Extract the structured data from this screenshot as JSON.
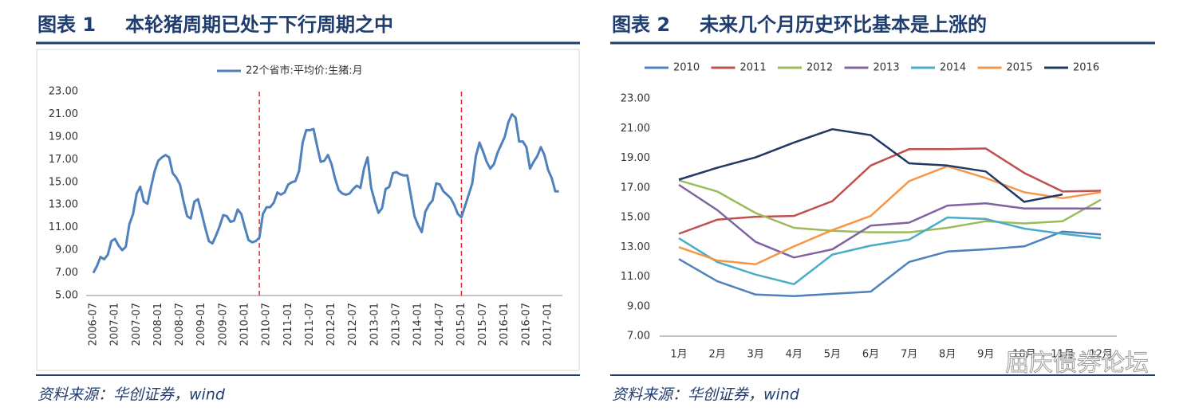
{
  "chart_data": [
    {
      "type": "line",
      "figure_label": "图表 1",
      "title": "本轮猪周期已处于下行周期之中",
      "source": "资料来源：华创证券，wind",
      "categories": [
        "2006-07",
        null,
        null,
        null,
        null,
        null,
        "2007-01",
        null,
        null,
        null,
        null,
        null,
        "2007-07",
        null,
        null,
        null,
        null,
        null,
        "2008-01",
        null,
        null,
        null,
        null,
        null,
        "2008-07",
        null,
        null,
        null,
        null,
        null,
        "2009-01",
        null,
        null,
        null,
        null,
        null,
        "2009-07",
        null,
        null,
        null,
        null,
        null,
        "2010-01",
        null,
        null,
        null,
        null,
        null,
        "2010-07",
        null,
        null,
        null,
        null,
        null,
        "2011-01",
        null,
        null,
        null,
        null,
        null,
        "2011-07",
        null,
        null,
        null,
        null,
        null,
        "2012-01",
        null,
        null,
        null,
        null,
        null,
        "2012-07",
        null,
        null,
        null,
        null,
        null,
        "2013-01",
        null,
        null,
        null,
        null,
        null,
        "2013-07",
        null,
        null,
        null,
        null,
        null,
        "2014-01",
        null,
        null,
        null,
        null,
        null,
        "2014-07",
        null,
        null,
        null,
        null,
        null,
        "2015-01",
        null,
        null,
        null,
        null,
        null,
        "2015-07",
        null,
        null,
        null,
        null,
        null,
        "2016-01",
        null,
        null,
        null,
        null,
        null,
        "2016-07",
        null,
        null,
        null,
        null,
        null,
        "2017-01",
        null,
        null,
        null
      ],
      "series": [
        {
          "name": "22个省市:平均价:生猪:月",
          "color": "#4f81bd",
          "values": [
            7.0,
            7.6,
            8.4,
            8.2,
            8.6,
            9.8,
            10.0,
            9.4,
            9.0,
            9.3,
            11.3,
            12.2,
            14.0,
            14.6,
            13.3,
            13.1,
            14.6,
            16.0,
            16.9,
            17.2,
            17.4,
            17.2,
            15.8,
            15.4,
            14.8,
            13.3,
            12.0,
            11.8,
            13.3,
            13.5,
            12.3,
            11.0,
            9.8,
            9.6,
            10.3,
            11.1,
            12.1,
            12.0,
            11.5,
            11.6,
            12.6,
            12.2,
            11.0,
            9.9,
            9.7,
            9.8,
            10.1,
            12.2,
            12.8,
            12.8,
            13.2,
            14.1,
            13.9,
            14.1,
            14.8,
            15.0,
            15.1,
            16.0,
            18.5,
            19.6,
            19.6,
            19.7,
            18.2,
            16.8,
            16.9,
            17.4,
            16.6,
            15.3,
            14.3,
            14.0,
            13.9,
            14.0,
            14.4,
            14.7,
            14.5,
            16.2,
            17.2,
            14.5,
            13.3,
            12.3,
            12.7,
            14.4,
            14.6,
            15.8,
            15.9,
            15.7,
            15.6,
            15.6,
            13.8,
            12.0,
            11.2,
            10.6,
            12.4,
            13.0,
            13.4,
            14.9,
            14.8,
            14.2,
            13.9,
            13.6,
            13.0,
            12.2,
            11.9,
            12.9,
            13.9,
            14.9,
            17.3,
            18.5,
            17.7,
            16.8,
            16.2,
            16.6,
            17.6,
            18.3,
            19.0,
            20.3,
            21.0,
            20.7,
            18.6,
            18.6,
            18.1,
            16.2,
            16.8,
            17.3,
            18.1,
            17.4,
            16.1,
            15.4,
            14.2,
            14.2
          ]
        }
      ],
      "vlines": [
        46,
        102
      ],
      "vline_color": "#e8262b",
      "ylim": [
        5,
        23
      ],
      "yticks": [
        {
          "value": 5,
          "label": "5.00"
        },
        {
          "value": 7,
          "label": "7.00"
        },
        {
          "value": 9,
          "label": "9.00"
        },
        {
          "value": 11,
          "label": "11.00"
        },
        {
          "value": 13,
          "label": "13.00"
        },
        {
          "value": 15,
          "label": "15.00"
        },
        {
          "value": 17,
          "label": "17.00"
        },
        {
          "value": 19,
          "label": "19.00"
        },
        {
          "value": 21,
          "label": "21.00"
        },
        {
          "value": 23,
          "label": "23.00"
        }
      ],
      "grid": false,
      "legend": "top"
    },
    {
      "type": "line",
      "figure_label": "图表 2",
      "title": "未来几个月历史环比基本是上涨的",
      "source": "资料来源：华创证券，wind",
      "categories": [
        "1月",
        "2月",
        "3月",
        "4月",
        "5月",
        "6月",
        "7月",
        "8月",
        "9月",
        "10月",
        "11月",
        "12月"
      ],
      "series": [
        {
          "name": "2010",
          "color": "#4f81bd",
          "values": [
            12.2,
            10.7,
            9.8,
            9.7,
            9.85,
            10.0,
            12.0,
            12.7,
            12.85,
            13.05,
            14.05,
            13.85
          ]
        },
        {
          "name": "2011",
          "color": "#c0504d",
          "values": [
            13.9,
            14.85,
            15.05,
            15.1,
            16.1,
            18.5,
            19.6,
            19.6,
            19.65,
            18.0,
            16.75,
            16.8
          ]
        },
        {
          "name": "2012",
          "color": "#9bbb59",
          "values": [
            17.5,
            16.75,
            15.3,
            14.3,
            14.1,
            14.0,
            14.0,
            14.3,
            14.75,
            14.6,
            14.75,
            16.2
          ]
        },
        {
          "name": "2013",
          "color": "#8064a2",
          "values": [
            17.2,
            15.5,
            13.35,
            12.3,
            12.85,
            14.45,
            14.65,
            15.8,
            15.95,
            15.6,
            15.6,
            15.6
          ]
        },
        {
          "name": "2014",
          "color": "#4bacc6",
          "values": [
            13.6,
            12.0,
            11.15,
            10.5,
            12.5,
            13.1,
            13.5,
            15.0,
            14.9,
            14.25,
            13.9,
            13.6
          ]
        },
        {
          "name": "2015",
          "color": "#f79646",
          "values": [
            13.0,
            12.1,
            11.85,
            13.05,
            14.15,
            15.1,
            17.45,
            18.45,
            17.65,
            16.7,
            16.3,
            16.7
          ]
        },
        {
          "name": "2016",
          "color": "#1f3864",
          "values": [
            17.55,
            18.35,
            19.05,
            20.05,
            20.95,
            20.55,
            18.65,
            18.5,
            18.1,
            16.05,
            16.55,
            null
          ]
        }
      ],
      "ylim": [
        7,
        23
      ],
      "yticks": [
        {
          "value": 7,
          "label": "7.00"
        },
        {
          "value": 9,
          "label": "9.00"
        },
        {
          "value": 11,
          "label": "11.00"
        },
        {
          "value": 13,
          "label": "13.00"
        },
        {
          "value": 15,
          "label": "15.00"
        },
        {
          "value": 17,
          "label": "17.00"
        },
        {
          "value": 19,
          "label": "19.00"
        },
        {
          "value": 21,
          "label": "21.00"
        },
        {
          "value": 23,
          "label": "23.00"
        }
      ],
      "grid": false,
      "legend": "top",
      "watermark": "屈庆债券论坛"
    }
  ]
}
